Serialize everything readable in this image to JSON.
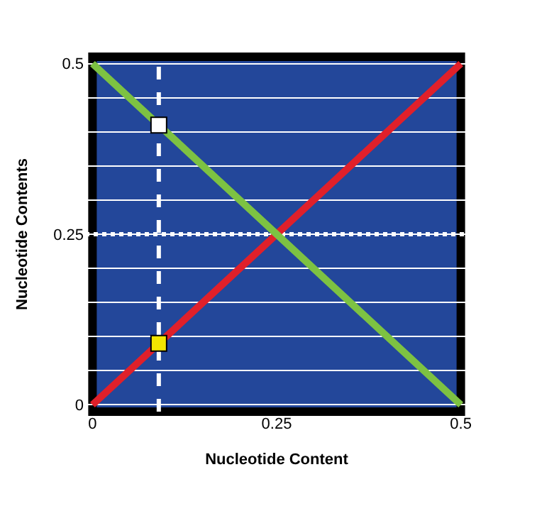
{
  "chart_data": {
    "type": "line",
    "xlabel": "Nucleotide Content",
    "ylabel": "Nucleotide Contents",
    "x": [
      0,
      0.25,
      0.5
    ],
    "xlim": [
      -0.01,
      0.51
    ],
    "ylim": [
      -0.01,
      0.51
    ],
    "xticks": [
      0,
      0.25,
      0.5
    ],
    "yticks": [
      0,
      {
        "value": 0.05,
        "label": null
      },
      {
        "value": 0.1,
        "label": null
      },
      {
        "value": 0.15,
        "label": null
      },
      {
        "value": 0.2,
        "label": null
      },
      0.25,
      {
        "value": 0.3,
        "label": null
      },
      {
        "value": 0.35,
        "label": null
      },
      {
        "value": 0.4,
        "label": null
      },
      {
        "value": 0.45,
        "label": null
      },
      0.5
    ],
    "grid": "y",
    "series": [
      {
        "color": "#e0202a",
        "values": [
          0,
          0.25,
          0.5
        ]
      },
      {
        "color": "#7dc242",
        "values": [
          0.5,
          0.25,
          0
        ]
      },
      {
        "type": "scatter",
        "marker": "square",
        "x": [
          0.09
        ],
        "values": [
          0.41
        ],
        "color": "#ffffff"
      },
      {
        "type": "scatter",
        "marker": "square",
        "x": [
          0.09
        ],
        "values": [
          0.09
        ],
        "color": "#f2e600"
      }
    ],
    "bands": [
      {
        "axis": "x",
        "from": 0,
        "to": 0.5,
        "color": "#23479a"
      }
    ],
    "ref_lines": [
      {
        "axis": "x",
        "value": 0.09,
        "color": "#ffffff",
        "line_style": "dashed"
      },
      {
        "axis": "y",
        "value": 0.25,
        "color": "#ffffff",
        "line_style": "dotted"
      }
    ]
  }
}
